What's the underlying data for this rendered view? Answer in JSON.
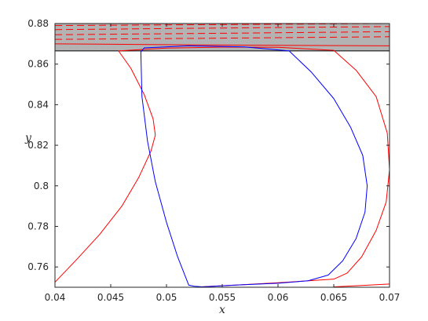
{
  "chart_data": {
    "type": "line",
    "title": "",
    "xlabel": "x",
    "ylabel": "y",
    "xlim": [
      0.04,
      0.07
    ],
    "ylim": [
      0.75,
      0.88
    ],
    "x_ticks": [
      0.04,
      0.045,
      0.05,
      0.055,
      0.06,
      0.065,
      0.07
    ],
    "x_tick_labels": [
      "0.04",
      "0.045",
      "0.05",
      "0.055",
      "0.06",
      "0.065",
      "0.07"
    ],
    "y_ticks": [
      0.76,
      0.78,
      0.8,
      0.82,
      0.84,
      0.86,
      0.88
    ],
    "y_tick_labels": [
      "0.76",
      "0.78",
      "0.8",
      "0.82",
      "0.84",
      "0.86",
      "0.88"
    ],
    "grid": false,
    "shaded_band": {
      "y_from": 0.8665,
      "y_to": 0.88,
      "color": "#b3b3b3",
      "edge_color": "#000000"
    },
    "colors": {
      "red": "#ff0000",
      "blue": "#0000ff",
      "axis": "#262626"
    },
    "series": [
      {
        "color": "#ff0000",
        "style": "solid",
        "x": [
          0.04,
          0.042,
          0.044,
          0.046,
          0.0475,
          0.0486,
          0.049,
          0.0488,
          0.048,
          0.0468,
          0.0457,
          0.05,
          0.055,
          0.06,
          0.065,
          0.067,
          0.0688,
          0.0698,
          0.07,
          0.0697,
          0.0688,
          0.0675,
          0.0662,
          0.065,
          0.063,
          0.06,
          0.056,
          0.053
        ],
        "y": [
          0.7525,
          0.764,
          0.776,
          0.79,
          0.804,
          0.817,
          0.825,
          0.833,
          0.845,
          0.858,
          0.8665,
          0.8679,
          0.8684,
          0.8683,
          0.8668,
          0.857,
          0.844,
          0.826,
          0.808,
          0.792,
          0.778,
          0.765,
          0.757,
          0.754,
          0.7533,
          0.7522,
          0.751,
          0.7502
        ]
      },
      {
        "color": "#ff0000",
        "style": "solid",
        "x": [
          0.065,
          0.068,
          0.07
        ],
        "y": [
          0.7502,
          0.751,
          0.7516
        ]
      },
      {
        "color": "#0000ff",
        "style": "solid",
        "x": [
          0.0532,
          0.0525,
          0.052,
          0.051,
          0.05,
          0.049,
          0.0483,
          0.0478,
          0.0477,
          0.048,
          0.052,
          0.057,
          0.061,
          0.063,
          0.065,
          0.0665,
          0.0676,
          0.068,
          0.0678,
          0.067,
          0.0658,
          0.0645,
          0.0627,
          0.06,
          0.056,
          0.0532
        ],
        "y": [
          0.7502,
          0.7505,
          0.751,
          0.765,
          0.782,
          0.802,
          0.822,
          0.844,
          0.866,
          0.868,
          0.869,
          0.8685,
          0.8665,
          0.856,
          0.843,
          0.829,
          0.815,
          0.8,
          0.787,
          0.774,
          0.763,
          0.756,
          0.7532,
          0.752,
          0.751,
          0.7502
        ]
      },
      {
        "color": "#ff0000",
        "style": "solid",
        "x": [
          0.04,
          0.055,
          0.07
        ],
        "y": [
          0.87,
          0.8694,
          0.869
        ]
      },
      {
        "color": "#ff0000",
        "style": "dashed",
        "x": [
          0.04,
          0.055,
          0.07
        ],
        "y": [
          0.8722,
          0.8728,
          0.8735
        ]
      },
      {
        "color": "#ff0000",
        "style": "dashed",
        "x": [
          0.04,
          0.055,
          0.07
        ],
        "y": [
          0.8745,
          0.8752,
          0.876
        ]
      },
      {
        "color": "#ff0000",
        "style": "dashed",
        "x": [
          0.04,
          0.055,
          0.07
        ],
        "y": [
          0.877,
          0.8778,
          0.8785
        ]
      },
      {
        "color": "#ff0000",
        "style": "dashed",
        "x": [
          0.04,
          0.055,
          0.07
        ],
        "y": [
          0.879,
          0.8795,
          0.88
        ]
      }
    ]
  }
}
